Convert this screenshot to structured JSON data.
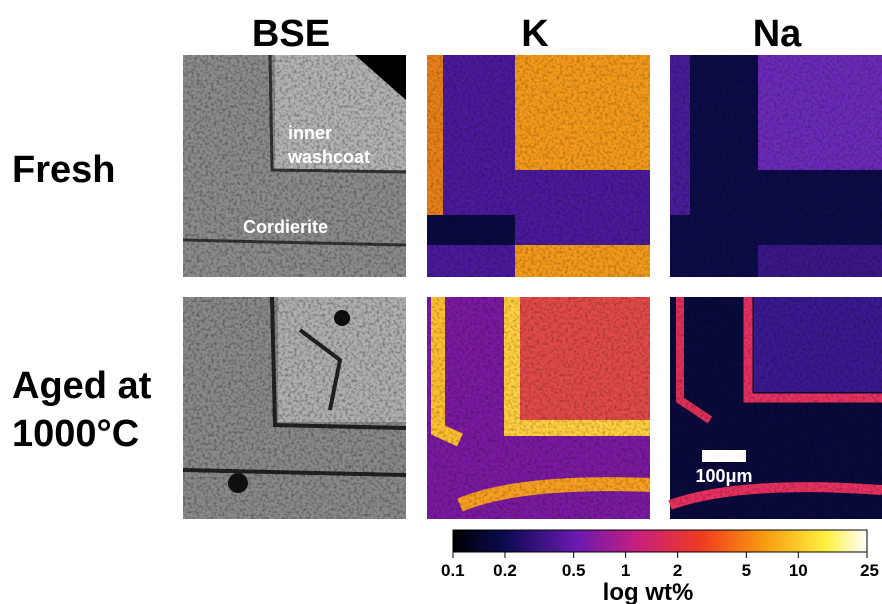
{
  "columns": [
    "BSE",
    "K",
    "Na"
  ],
  "rows": [
    {
      "lines": [
        "Fresh"
      ]
    },
    {
      "lines": [
        "Aged at",
        "1000°C"
      ]
    }
  ],
  "annotations": {
    "inner": "inner",
    "washcoat": "washcoat",
    "cordierite": "Cordierite",
    "scale_bar": "100μm"
  },
  "colorbar": {
    "label": "log wt%",
    "log": true,
    "lim": [
      0.1,
      25
    ],
    "ticks": [
      0.1,
      0.2,
      0.5,
      1,
      2,
      5,
      10,
      25
    ]
  }
}
